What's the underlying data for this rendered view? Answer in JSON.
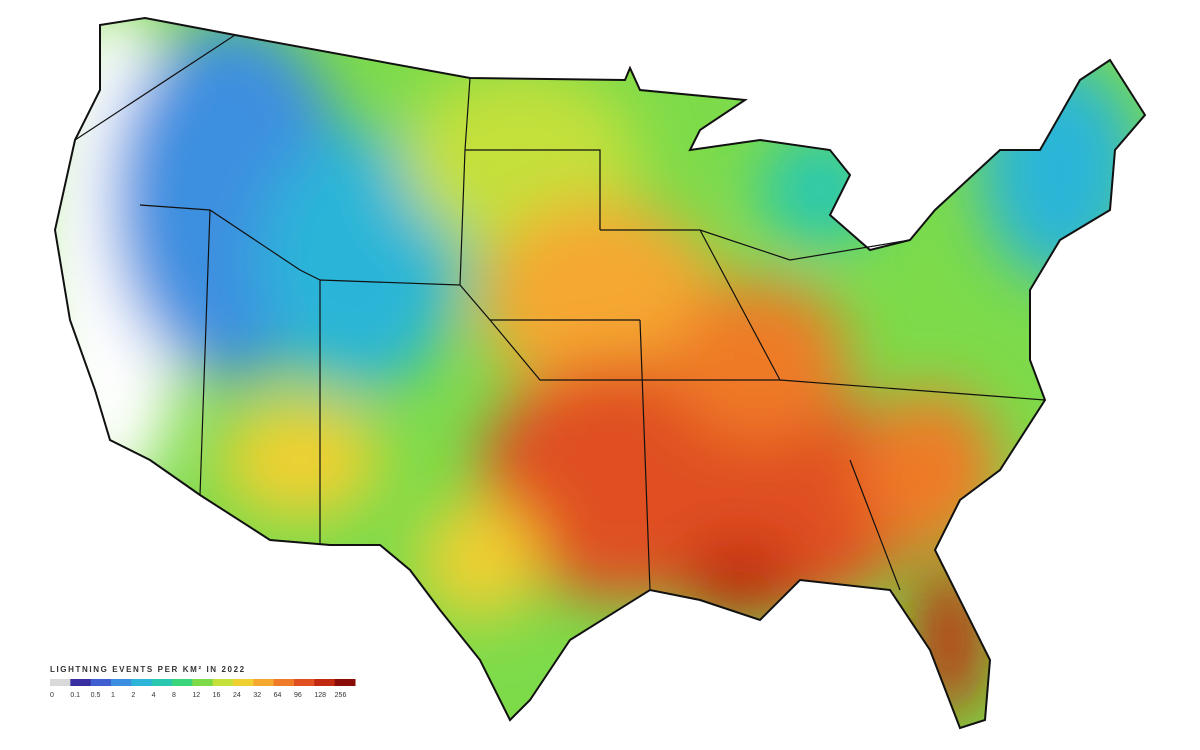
{
  "legend": {
    "title": "LIGHTNING EVENTS PER KM² IN 2022",
    "items": [
      {
        "label": "0",
        "color": "#d9d9d9"
      },
      {
        "label": "0.1",
        "color": "#3a2fa0"
      },
      {
        "label": "0.5",
        "color": "#3f5fd0"
      },
      {
        "label": "1",
        "color": "#3c8fe0"
      },
      {
        "label": "2",
        "color": "#2cb5d8"
      },
      {
        "label": "4",
        "color": "#2ac8b0"
      },
      {
        "label": "8",
        "color": "#3ad47a"
      },
      {
        "label": "12",
        "color": "#7ddb4a"
      },
      {
        "label": "16",
        "color": "#c4e03a"
      },
      {
        "label": "24",
        "color": "#f0d030"
      },
      {
        "label": "32",
        "color": "#f5a830"
      },
      {
        "label": "64",
        "color": "#ef7a28"
      },
      {
        "label": "96",
        "color": "#e05020"
      },
      {
        "label": "128",
        "color": "#c02810"
      },
      {
        "label": "256",
        "color": "#8a0c08"
      }
    ]
  }
}
